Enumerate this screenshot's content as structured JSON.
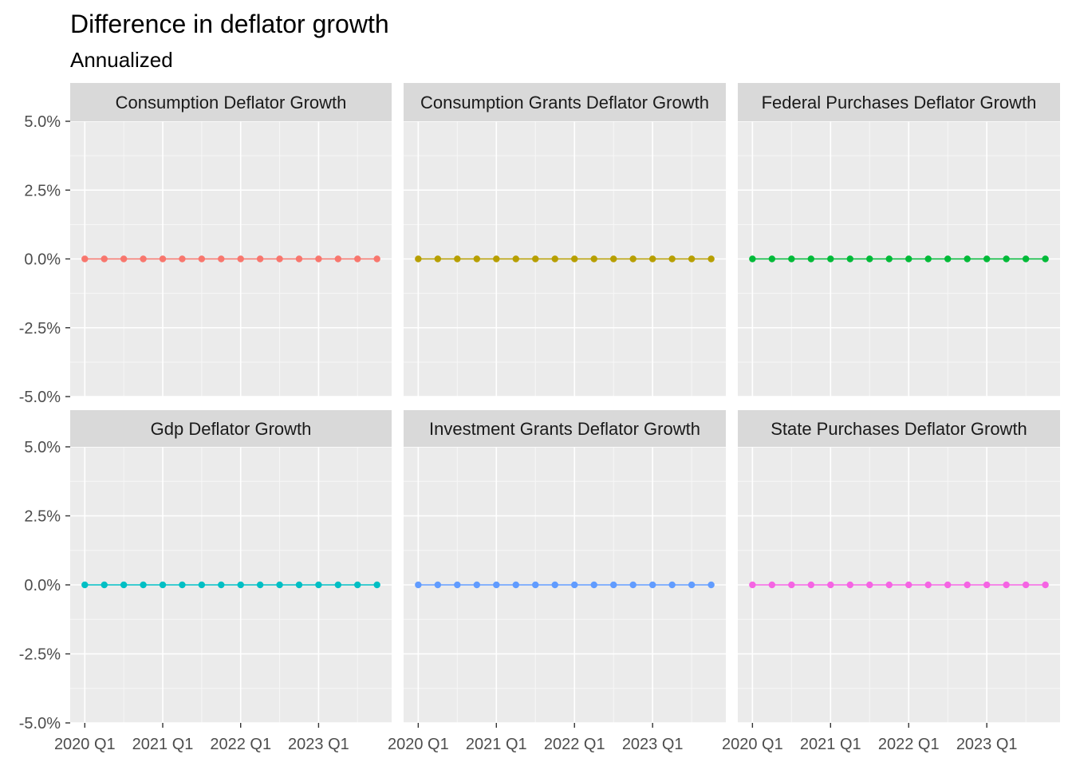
{
  "chart_data": {
    "type": "line",
    "title": "Difference in deflator growth",
    "subtitle": "Annualized",
    "xlabel": "",
    "ylabel": "",
    "x": [
      "2020 Q1",
      "2020 Q2",
      "2020 Q3",
      "2020 Q4",
      "2021 Q1",
      "2021 Q2",
      "2021 Q3",
      "2021 Q4",
      "2022 Q1",
      "2022 Q2",
      "2022 Q3",
      "2022 Q4",
      "2023 Q1",
      "2023 Q2",
      "2023 Q3",
      "2023 Q4"
    ],
    "x_ticks": [
      "2020 Q1",
      "2021 Q1",
      "2022 Q1",
      "2023 Q1"
    ],
    "y_ticks": [
      "5.0%",
      "2.5%",
      "0.0%",
      "-2.5%",
      "-5.0%"
    ],
    "ylim": [
      -5.0,
      5.0
    ],
    "y_unit": "%",
    "grid": true,
    "legend": "none",
    "facets": {
      "rows": 2,
      "cols": 3
    },
    "series": [
      {
        "name": "Consumption Deflator Growth",
        "color": "#F8766D",
        "values": [
          0,
          0,
          0,
          0,
          0,
          0,
          0,
          0,
          0,
          0,
          0,
          0,
          0,
          0,
          0,
          0
        ]
      },
      {
        "name": "Consumption Grants Deflator Growth",
        "color": "#B79F00",
        "values": [
          0,
          0,
          0,
          0,
          0,
          0,
          0,
          0,
          0,
          0,
          0,
          0,
          0,
          0,
          0,
          0
        ]
      },
      {
        "name": "Federal Purchases Deflator Growth",
        "color": "#00BA38",
        "values": [
          0,
          0,
          0,
          0,
          0,
          0,
          0,
          0,
          0,
          0,
          0,
          0,
          0,
          0,
          0,
          0
        ]
      },
      {
        "name": "Gdp Deflator Growth",
        "color": "#00BFC4",
        "values": [
          0,
          0,
          0,
          0,
          0,
          0,
          0,
          0,
          0,
          0,
          0,
          0,
          0,
          0,
          0,
          0
        ]
      },
      {
        "name": "Investment Grants Deflator Growth",
        "color": "#619CFF",
        "values": [
          0,
          0,
          0,
          0,
          0,
          0,
          0,
          0,
          0,
          0,
          0,
          0,
          0,
          0,
          0,
          0
        ]
      },
      {
        "name": "State Purchases Deflator Growth",
        "color": "#F564E3",
        "values": [
          0,
          0,
          0,
          0,
          0,
          0,
          0,
          0,
          0,
          0,
          0,
          0,
          0,
          0,
          0,
          0
        ]
      }
    ]
  }
}
